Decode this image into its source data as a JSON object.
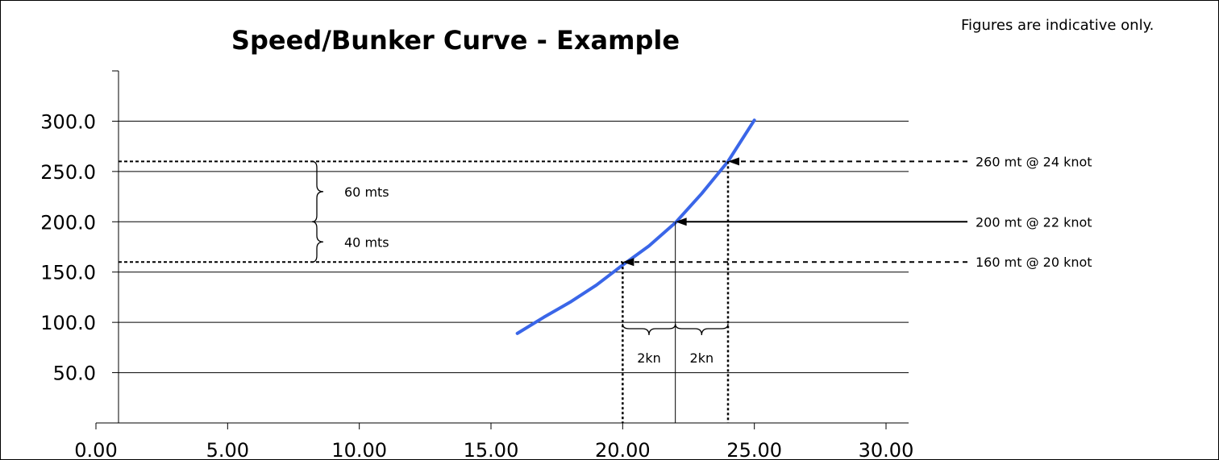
{
  "chart_data": {
    "type": "line",
    "title": "Speed/Bunker Curve - Example",
    "note": "Figures are indicative only.",
    "xlabel": "",
    "ylabel": "",
    "xlim": [
      0,
      30
    ],
    "ylim": [
      0,
      350
    ],
    "x_ticks": [
      "0.00",
      "5.00",
      "10.00",
      "15.00",
      "20.00",
      "25.00",
      "30.00"
    ],
    "y_ticks": [
      "50.0",
      "100.0",
      "150.0",
      "200.0",
      "250.0",
      "300.0"
    ],
    "grid": true,
    "series": [
      {
        "color": "#3a66e8",
        "x": [
          16.0,
          17.0,
          18.0,
          19.0,
          20.0,
          21.0,
          22.0,
          23.0,
          24.0,
          25.0
        ],
        "values": [
          89,
          105,
          120,
          137,
          157,
          176,
          199,
          228,
          260,
          301
        ]
      }
    ],
    "annotations": {
      "points": [
        {
          "label": "260 mt @ 24 knot",
          "x": 24,
          "y": 260,
          "style": "dashed"
        },
        {
          "label": "200 mt @ 22 knot",
          "x": 22,
          "y": 200,
          "style": "solid"
        },
        {
          "label": "160 mt @ 20 knot",
          "x": 20,
          "y": 160,
          "style": "dashed"
        }
      ],
      "braces_y": [
        {
          "label": "60 mts",
          "y_from": 200,
          "y_to": 260
        },
        {
          "label": "40 mts",
          "y_from": 160,
          "y_to": 200
        }
      ],
      "braces_x": [
        {
          "label": "2kn",
          "x_from": 20,
          "x_to": 22
        },
        {
          "label": "2kn",
          "x_from": 22,
          "x_to": 24
        }
      ]
    }
  }
}
